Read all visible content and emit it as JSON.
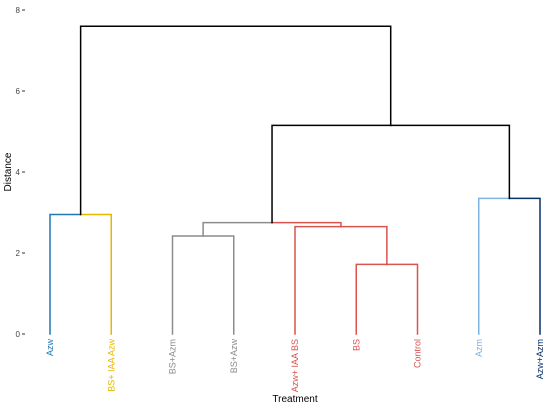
{
  "chart_data": {
    "type": "dendrogram",
    "title": "",
    "xlabel": "Treatment",
    "ylabel": "Distance",
    "ylim": [
      0,
      8
    ],
    "yticks": [
      0,
      2,
      4,
      6,
      8
    ],
    "grid": false,
    "legend": "none",
    "leaves": [
      {
        "label": "Azw",
        "color": "#1f78b4"
      },
      {
        "label": "BS+ IAA Azw",
        "color": "#e6b800"
      },
      {
        "label": "BS+Azm",
        "color": "#8c8c8c"
      },
      {
        "label": "BS+Azw",
        "color": "#8c8c8c"
      },
      {
        "label": "Azw+ IAA BS",
        "color": "#d9534f"
      },
      {
        "label": "BS",
        "color": "#d9534f"
      },
      {
        "label": "Control",
        "color": "#d9534f"
      },
      {
        "label": "Azm",
        "color": "#7fb3e0"
      },
      {
        "label": "Azw+Azm",
        "color": "#08306b"
      }
    ],
    "merges": [
      {
        "id": "m_bs_control",
        "children": [
          "BS",
          "Control"
        ],
        "height": 1.72,
        "color": "#d9534f"
      },
      {
        "id": "m_red",
        "children": [
          "Azw+ IAA BS",
          "m_bs_control"
        ],
        "height": 2.65,
        "color": "#d9534f"
      },
      {
        "id": "m_grey",
        "children": [
          "BS+Azm",
          "BS+Azw"
        ],
        "height": 2.42,
        "color": "#8c8c8c"
      },
      {
        "id": "m_mid",
        "children": [
          "m_grey",
          "m_red"
        ],
        "height": 2.75,
        "color": "#8c8c8c"
      },
      {
        "id": "m_yellow",
        "children": [
          "Azw",
          "BS+ IAA Azw"
        ],
        "height": 2.95,
        "color": "#1f78b4"
      },
      {
        "id": "m_blue",
        "children": [
          "Azm",
          "Azw+Azm"
        ],
        "height": 3.35,
        "color": "#08306b"
      },
      {
        "id": "m_right",
        "children": [
          "m_mid",
          "m_blue"
        ],
        "height": 5.15,
        "color": "#000000"
      },
      {
        "id": "m_root",
        "children": [
          "m_yellow",
          "m_right"
        ],
        "height": 7.6,
        "color": "#000000"
      }
    ]
  }
}
